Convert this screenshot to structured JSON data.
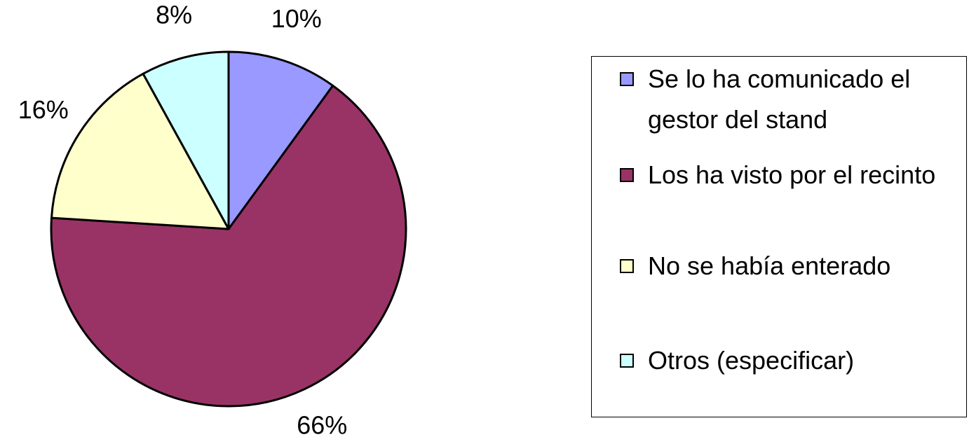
{
  "chart_data": {
    "type": "pie",
    "categories": [
      "Se lo ha comunicado el gestor del stand",
      "Los ha visto por el recinto",
      "No se había enterado",
      "Otros (especificar)"
    ],
    "values": [
      10,
      66,
      16,
      8
    ],
    "value_labels": [
      "10%",
      "66%",
      "16%",
      "8%"
    ],
    "colors": [
      "#9999ff",
      "#993366",
      "#ffffcc",
      "#ccffff"
    ],
    "legend": "right"
  }
}
